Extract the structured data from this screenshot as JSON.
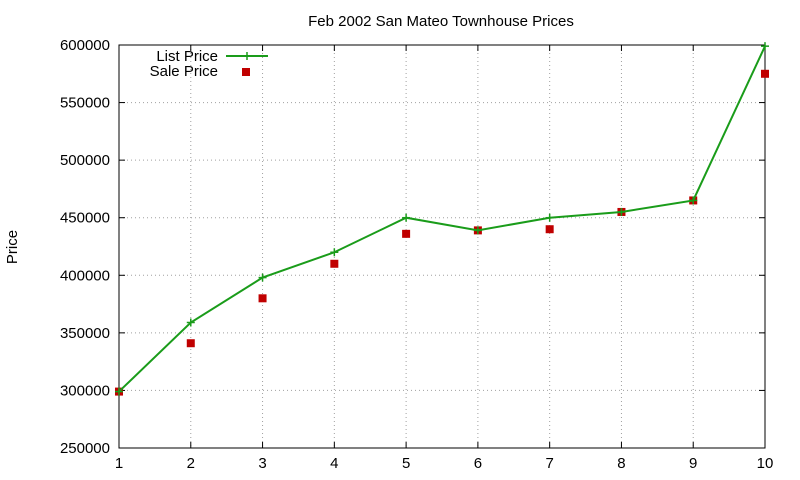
{
  "chart_data": {
    "type": "line",
    "title": "Feb 2002 San Mateo Townhouse Prices",
    "xlabel": "",
    "ylabel": "Price",
    "x": [
      1,
      2,
      3,
      4,
      5,
      6,
      7,
      8,
      9,
      10
    ],
    "xlim": [
      1,
      10
    ],
    "ylim": [
      250000,
      600000
    ],
    "x_ticks": [
      1,
      2,
      3,
      4,
      5,
      6,
      7,
      8,
      9,
      10
    ],
    "y_ticks": [
      250000,
      300000,
      350000,
      400000,
      450000,
      500000,
      550000,
      600000
    ],
    "grid": true,
    "legend_position": "top-left",
    "series": [
      {
        "name": "List Price",
        "style": "line-with-plus-markers",
        "color": "#1a9c1a",
        "values": [
          299000,
          359000,
          398000,
          420000,
          450000,
          439000,
          450000,
          455000,
          465000,
          599000
        ]
      },
      {
        "name": "Sale Price",
        "style": "square-markers",
        "color": "#c00000",
        "values": [
          299000,
          341000,
          380000,
          410000,
          436000,
          439000,
          440000,
          455000,
          465000,
          575000
        ]
      }
    ]
  }
}
